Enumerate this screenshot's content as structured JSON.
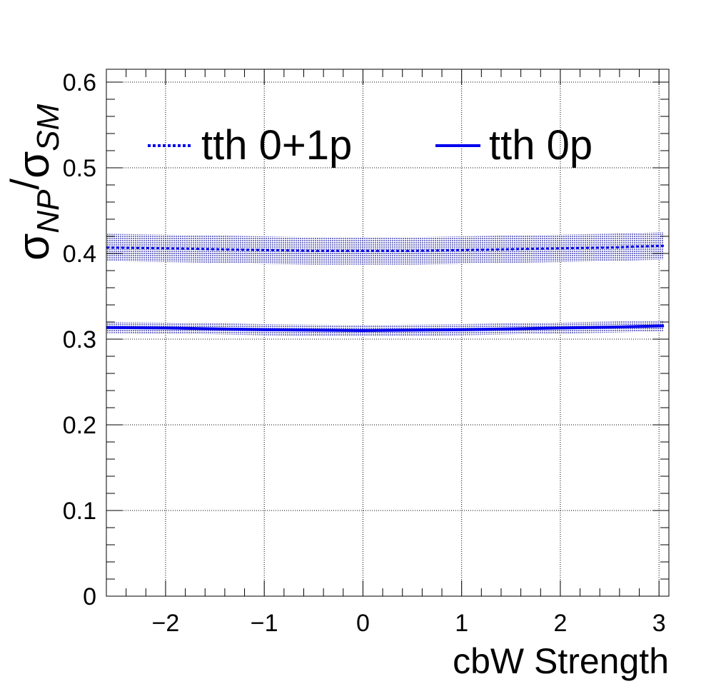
{
  "chart_data": {
    "type": "line",
    "title": "",
    "xlabel": "cbW Strength",
    "ylabel": {
      "main1": "σ",
      "sub1": "NP",
      "slash": "/",
      "main2": "σ",
      "sub2": "SM"
    },
    "xlim": [
      -2.6,
      3.1
    ],
    "ylim": [
      0,
      0.615
    ],
    "x_ticks": [
      -2,
      -1,
      0,
      1,
      2,
      3
    ],
    "x_tick_labels": [
      "−2",
      "−1",
      "0",
      "1",
      "2",
      "3"
    ],
    "y_ticks": [
      0,
      0.1,
      0.2,
      0.3,
      0.4,
      0.5,
      0.6
    ],
    "y_tick_labels": [
      "0",
      "0.1",
      "0.2",
      "0.3",
      "0.4",
      "0.5",
      "0.6"
    ],
    "grid": true,
    "legend_position": "top",
    "series": [
      {
        "name": "tth 0+1p",
        "style": "dotted",
        "color": "#0000ee",
        "band_color": "#3333bb",
        "x": [
          -2.6,
          -2.0,
          -1.5,
          -1.0,
          -0.5,
          0.0,
          0.5,
          1.0,
          1.5,
          2.0,
          2.5,
          3.05
        ],
        "y": [
          0.407,
          0.406,
          0.405,
          0.404,
          0.403,
          0.403,
          0.403,
          0.404,
          0.405,
          0.406,
          0.407,
          0.409
        ],
        "band_half_width": 0.016
      },
      {
        "name": "tth 0p",
        "style": "solid",
        "color": "#0000ee",
        "band_color": "#3333bb",
        "x": [
          -2.6,
          -2.0,
          -1.5,
          -1.0,
          -0.5,
          0.0,
          0.5,
          1.0,
          1.5,
          2.0,
          2.5,
          3.05
        ],
        "y": [
          0.3135,
          0.313,
          0.312,
          0.311,
          0.3105,
          0.31,
          0.3105,
          0.311,
          0.312,
          0.313,
          0.314,
          0.3155
        ],
        "band_half_width": 0.0065
      }
    ]
  }
}
